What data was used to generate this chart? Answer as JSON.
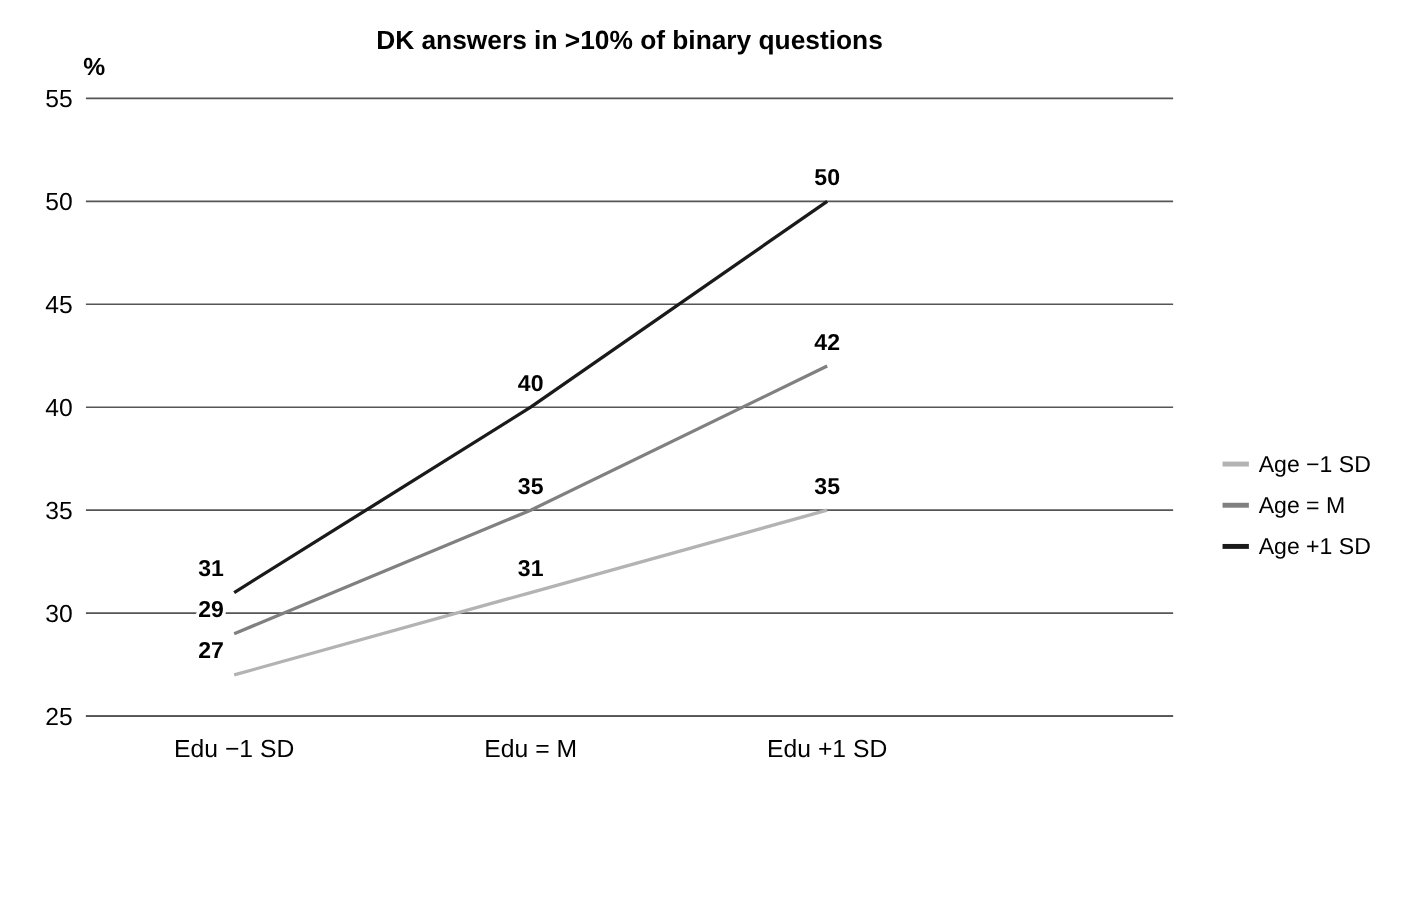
{
  "chart_data": {
    "type": "line",
    "title": "DK answers in >10% of binary questions",
    "ylabel": "%",
    "categories": [
      "Edu −1 SD",
      "Edu = M",
      "Edu +1 SD"
    ],
    "series": [
      {
        "name": "Age −1 SD",
        "color": "#b3b3b3",
        "values": [
          27,
          31,
          35
        ]
      },
      {
        "name": "Age = M",
        "color": "#808080",
        "values": [
          29,
          35,
          42
        ]
      },
      {
        "name": "Age +1 SD",
        "color": "#1a1a1a",
        "values": [
          31,
          40,
          50
        ]
      }
    ],
    "ylim": [
      25,
      55
    ],
    "yticks": [
      25,
      30,
      35,
      40,
      45,
      50,
      55
    ],
    "grid": "y",
    "legend": "right",
    "data_labels": true,
    "marker": "none",
    "line_style": "solid"
  }
}
